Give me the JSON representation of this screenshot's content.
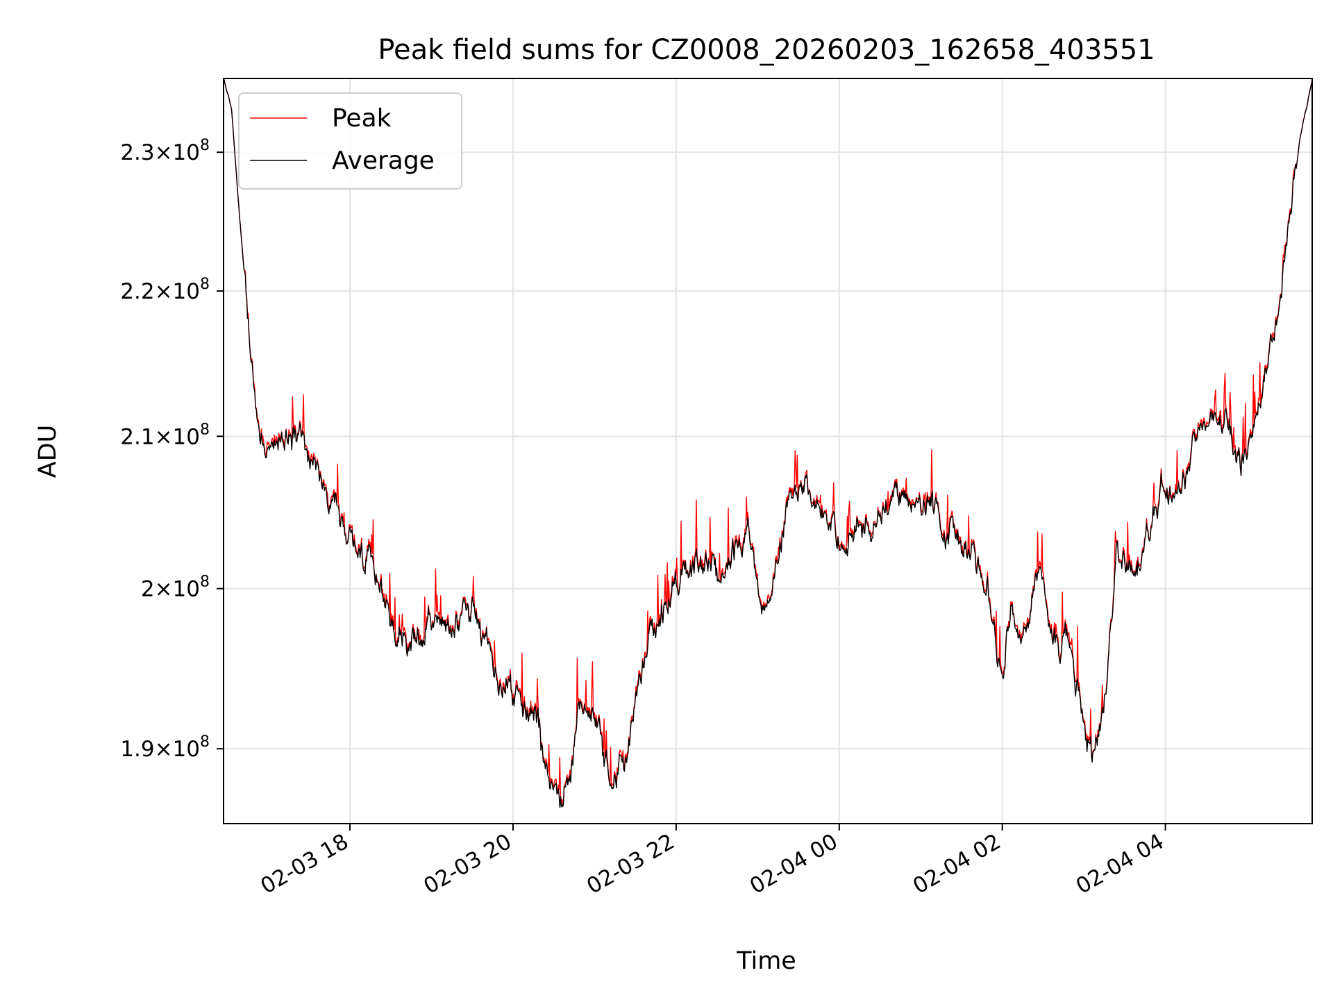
{
  "chart_data": {
    "type": "line",
    "title": "Peak field sums for CZ0008_20260203_162658_403551",
    "xlabel": "Time",
    "ylabel": "ADU",
    "xlim_hours": [
      16.45,
      29.8
    ],
    "ylim": [
      185500000,
      235500000
    ],
    "yscale": "log",
    "grid": true,
    "legend_location": "upper left",
    "x_ticks": [
      {
        "hour": 18,
        "label": "02-03 18"
      },
      {
        "hour": 20,
        "label": "02-03 20"
      },
      {
        "hour": 22,
        "label": "02-03 22"
      },
      {
        "hour": 24,
        "label": "02-04 00"
      },
      {
        "hour": 26,
        "label": "02-04 02"
      },
      {
        "hour": 28,
        "label": "02-04 04"
      }
    ],
    "y_ticks": [
      {
        "value": 190000000,
        "mantissa": "1.9",
        "exponent": "8"
      },
      {
        "value": 200000000,
        "mantissa": "2",
        "exponent": "8"
      },
      {
        "value": 210000000,
        "mantissa": "2.1",
        "exponent": "8"
      },
      {
        "value": 220000000,
        "mantissa": "2.2",
        "exponent": "8"
      },
      {
        "value": 230000000,
        "mantissa": "2.3",
        "exponent": "8"
      }
    ],
    "tick_label_times_sign": "×",
    "tick_label_base": "10",
    "series": [
      {
        "name": "Peak",
        "color": "#ff0000",
        "style": "spiky",
        "anchors": [
          [
            16.45,
            235500000
          ],
          [
            16.55,
            233000000
          ],
          [
            16.65,
            225000000
          ],
          [
            16.75,
            218000000
          ],
          [
            16.85,
            212000000
          ],
          [
            16.95,
            209500000
          ],
          [
            17.1,
            209500000
          ],
          [
            17.3,
            210500000
          ],
          [
            17.55,
            208500000
          ],
          [
            17.8,
            205000000
          ],
          [
            18.05,
            202500000
          ],
          [
            18.3,
            201000000
          ],
          [
            18.55,
            198000000
          ],
          [
            18.75,
            196500000
          ],
          [
            19.0,
            197500000
          ],
          [
            19.3,
            197800000
          ],
          [
            19.5,
            198500000
          ],
          [
            19.65,
            197000000
          ],
          [
            19.85,
            194500000
          ],
          [
            20.1,
            193200000
          ],
          [
            20.3,
            192000000
          ],
          [
            20.45,
            187500000
          ],
          [
            20.55,
            186000000
          ],
          [
            20.7,
            189000000
          ],
          [
            20.85,
            193500000
          ],
          [
            21.0,
            192000000
          ],
          [
            21.1,
            189500000
          ],
          [
            21.25,
            188000000
          ],
          [
            21.4,
            189000000
          ],
          [
            21.55,
            194000000
          ],
          [
            21.7,
            197500000
          ],
          [
            21.9,
            199000000
          ],
          [
            22.1,
            201500000
          ],
          [
            22.3,
            202000000
          ],
          [
            22.5,
            200500000
          ],
          [
            22.7,
            202500000
          ],
          [
            22.9,
            203500000
          ],
          [
            23.05,
            199500000
          ],
          [
            23.2,
            201000000
          ],
          [
            23.35,
            205000000
          ],
          [
            23.55,
            206500000
          ],
          [
            23.75,
            205500000
          ],
          [
            24.0,
            203000000
          ],
          [
            24.2,
            203500000
          ],
          [
            24.45,
            204500000
          ],
          [
            24.7,
            206000000
          ],
          [
            24.9,
            205500000
          ],
          [
            25.15,
            205000000
          ],
          [
            25.4,
            203500000
          ],
          [
            25.65,
            202000000
          ],
          [
            25.85,
            200000000
          ],
          [
            26.0,
            194000000
          ],
          [
            26.1,
            199000000
          ],
          [
            26.25,
            196000000
          ],
          [
            26.45,
            201000000
          ],
          [
            26.6,
            197500000
          ],
          [
            26.8,
            196000000
          ],
          [
            26.95,
            193500000
          ],
          [
            27.1,
            189500000
          ],
          [
            27.25,
            193000000
          ],
          [
            27.4,
            202500000
          ],
          [
            27.6,
            201000000
          ],
          [
            27.8,
            203500000
          ],
          [
            27.95,
            207000000
          ],
          [
            28.15,
            206000000
          ],
          [
            28.35,
            209500000
          ],
          [
            28.55,
            211500000
          ],
          [
            28.75,
            211500000
          ],
          [
            28.9,
            208500000
          ],
          [
            29.0,
            208000000
          ],
          [
            29.15,
            212000000
          ],
          [
            29.3,
            216500000
          ],
          [
            29.45,
            221500000
          ],
          [
            29.55,
            226000000
          ],
          [
            29.65,
            231000000
          ],
          [
            29.8,
            235500000
          ]
        ]
      },
      {
        "name": "Average",
        "color": "#000000",
        "style": "smoothed",
        "follows": "Peak"
      }
    ]
  }
}
